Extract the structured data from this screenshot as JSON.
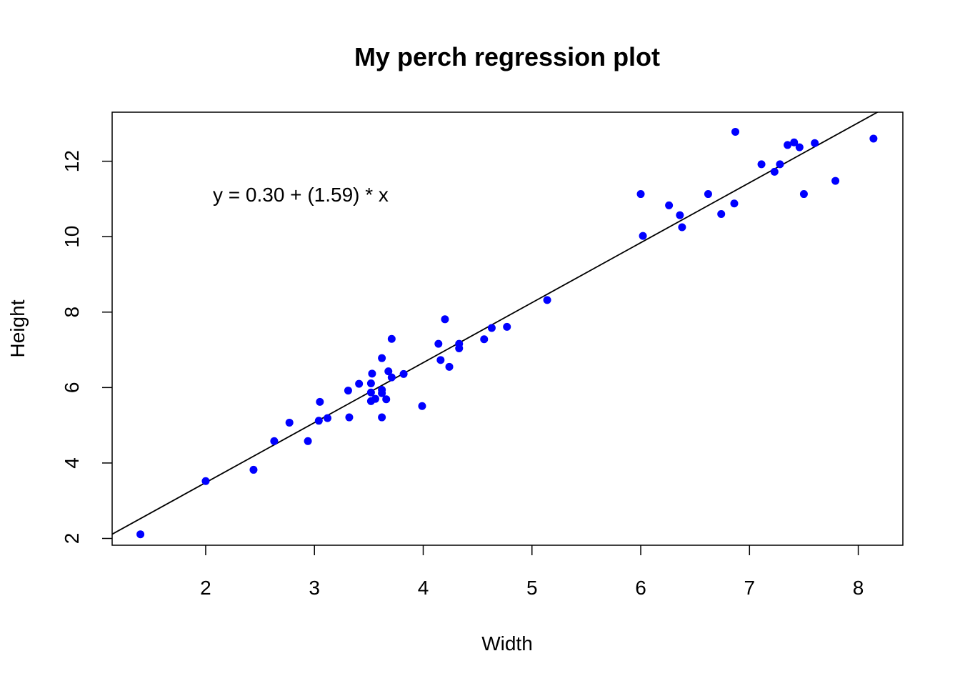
{
  "chart_data": {
    "type": "scatter",
    "title": "My perch regression plot",
    "xlabel": "Width",
    "ylabel": "Height",
    "xlim": [
      1.14,
      8.41
    ],
    "ylim": [
      1.82,
      13.3
    ],
    "xticks": [
      2,
      3,
      4,
      5,
      6,
      7,
      8
    ],
    "yticks": [
      2,
      4,
      6,
      8,
      10,
      12
    ],
    "grid": false,
    "point_color": "#0000ff",
    "line_color": "#000000",
    "annotation": "y = 0.30 + (1.59) * x",
    "regression": {
      "intercept": 0.3,
      "slope": 1.59
    },
    "series": [
      {
        "points": [
          [
            1.4,
            2.11
          ],
          [
            2.0,
            3.52
          ],
          [
            2.44,
            3.82
          ],
          [
            2.63,
            4.58
          ],
          [
            2.77,
            5.07
          ],
          [
            2.94,
            4.58
          ],
          [
            3.04,
            5.12
          ],
          [
            3.05,
            5.62
          ],
          [
            3.12,
            5.19
          ],
          [
            3.31,
            5.92
          ],
          [
            3.32,
            5.21
          ],
          [
            3.41,
            6.1
          ],
          [
            3.52,
            5.64
          ],
          [
            3.52,
            5.87
          ],
          [
            3.52,
            6.11
          ],
          [
            3.53,
            6.37
          ],
          [
            3.56,
            5.7
          ],
          [
            3.62,
            5.85
          ],
          [
            3.62,
            5.94
          ],
          [
            3.62,
            5.21
          ],
          [
            3.62,
            6.78
          ],
          [
            3.66,
            5.69
          ],
          [
            3.68,
            6.43
          ],
          [
            3.71,
            6.27
          ],
          [
            3.71,
            7.29
          ],
          [
            3.82,
            6.36
          ],
          [
            3.99,
            5.51
          ],
          [
            4.14,
            7.16
          ],
          [
            4.16,
            6.73
          ],
          [
            4.2,
            7.81
          ],
          [
            4.24,
            6.55
          ],
          [
            4.33,
            7.04
          ],
          [
            4.33,
            7.16
          ],
          [
            4.56,
            7.28
          ],
          [
            4.63,
            7.58
          ],
          [
            4.77,
            7.61
          ],
          [
            5.14,
            8.32
          ],
          [
            6.0,
            11.13
          ],
          [
            6.02,
            10.02
          ],
          [
            6.26,
            10.83
          ],
          [
            6.36,
            10.57
          ],
          [
            6.38,
            10.25
          ],
          [
            6.62,
            11.13
          ],
          [
            6.74,
            10.6
          ],
          [
            6.86,
            10.88
          ],
          [
            6.87,
            12.78
          ],
          [
            7.11,
            11.92
          ],
          [
            7.23,
            11.72
          ],
          [
            7.28,
            11.92
          ],
          [
            7.35,
            12.43
          ],
          [
            7.41,
            12.5
          ],
          [
            7.46,
            12.37
          ],
          [
            7.5,
            11.13
          ],
          [
            7.6,
            12.48
          ],
          [
            7.79,
            11.48
          ],
          [
            8.14,
            12.6
          ]
        ]
      }
    ]
  }
}
